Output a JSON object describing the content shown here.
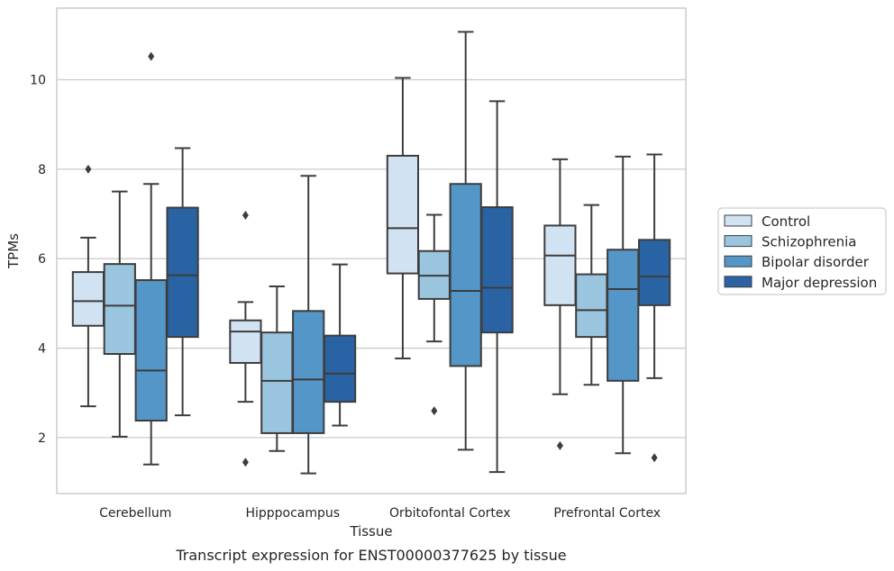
{
  "chart_data": {
    "type": "box",
    "title": "",
    "caption": "Transcript expression for ENST00000377625 by tissue",
    "xlabel": "Tissue",
    "ylabel": "TPMs",
    "ylim": [
      0.75,
      11.6
    ],
    "yticks": [
      2,
      4,
      6,
      8,
      10
    ],
    "grid": "horizontal",
    "legend_position": "right",
    "categories": [
      "Cerebellum",
      "Hipppocampus",
      "Orbitofontal Cortex",
      "Prefrontal Cortex"
    ],
    "series": [
      {
        "name": "Control",
        "color": "#d1e2f2",
        "boxes": [
          {
            "whisker_low": 2.7,
            "q1": 4.5,
            "median": 5.05,
            "q3": 5.7,
            "whisker_high": 6.47,
            "outliers": [
              8.0
            ]
          },
          {
            "whisker_low": 2.8,
            "q1": 3.67,
            "median": 4.37,
            "q3": 4.62,
            "whisker_high": 5.03,
            "outliers": [
              6.97,
              1.45
            ]
          },
          {
            "whisker_low": 3.77,
            "q1": 5.67,
            "median": 6.68,
            "q3": 8.3,
            "whisker_high": 10.04,
            "outliers": []
          },
          {
            "whisker_low": 2.97,
            "q1": 4.96,
            "median": 6.07,
            "q3": 6.74,
            "whisker_high": 8.22,
            "outliers": [
              1.82
            ]
          }
        ]
      },
      {
        "name": "Schizophrenia",
        "color": "#9ac5df",
        "boxes": [
          {
            "whisker_low": 2.02,
            "q1": 3.87,
            "median": 4.95,
            "q3": 5.88,
            "whisker_high": 7.5,
            "outliers": []
          },
          {
            "whisker_low": 1.7,
            "q1": 2.1,
            "median": 3.27,
            "q3": 4.35,
            "whisker_high": 5.38,
            "outliers": []
          },
          {
            "whisker_low": 4.15,
            "q1": 5.1,
            "median": 5.62,
            "q3": 6.17,
            "whisker_high": 6.98,
            "outliers": [
              2.6
            ]
          },
          {
            "whisker_low": 3.18,
            "q1": 4.25,
            "median": 4.85,
            "q3": 5.65,
            "whisker_high": 7.2,
            "outliers": []
          }
        ]
      },
      {
        "name": "Bipolar disorder",
        "color": "#5596c8",
        "boxes": [
          {
            "whisker_low": 1.4,
            "q1": 2.38,
            "median": 3.5,
            "q3": 5.52,
            "whisker_high": 7.67,
            "outliers": [
              10.52
            ]
          },
          {
            "whisker_low": 1.2,
            "q1": 2.1,
            "median": 3.3,
            "q3": 4.83,
            "whisker_high": 7.85,
            "outliers": []
          },
          {
            "whisker_low": 1.73,
            "q1": 3.6,
            "median": 5.28,
            "q3": 7.67,
            "whisker_high": 11.07,
            "outliers": []
          },
          {
            "whisker_low": 1.65,
            "q1": 3.27,
            "median": 5.32,
            "q3": 6.2,
            "whisker_high": 8.28,
            "outliers": []
          }
        ]
      },
      {
        "name": "Major depression",
        "color": "#2a63a3",
        "boxes": [
          {
            "whisker_low": 2.5,
            "q1": 4.25,
            "median": 5.63,
            "q3": 7.14,
            "whisker_high": 8.47,
            "outliers": []
          },
          {
            "whisker_low": 2.27,
            "q1": 2.8,
            "median": 3.43,
            "q3": 4.28,
            "whisker_high": 5.87,
            "outliers": []
          },
          {
            "whisker_low": 1.23,
            "q1": 4.35,
            "median": 5.35,
            "q3": 7.15,
            "whisker_high": 9.52,
            "outliers": []
          },
          {
            "whisker_low": 3.33,
            "q1": 4.96,
            "median": 5.6,
            "q3": 6.42,
            "whisker_high": 8.33,
            "outliers": [
              1.55
            ]
          }
        ]
      }
    ]
  }
}
